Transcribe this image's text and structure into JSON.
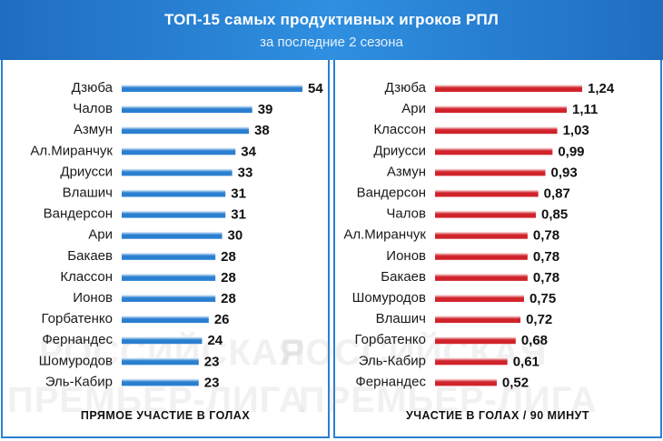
{
  "title": "ТОП-15 самых продуктивных игроков РПЛ",
  "subtitle": "за последние 2 сезона",
  "watermark": [
    "РОССИЙСКАЯ",
    "ПРЕМЬЕР-ЛИГА"
  ],
  "colors": {
    "header": "#2a7fd0",
    "left_bar": "#2a7fd0",
    "right_bar": "#d0232b",
    "border": "#2a7fd0"
  },
  "chart_data": [
    {
      "type": "bar",
      "orientation": "horizontal",
      "caption": "ПРЯМОЕ УЧАСТИЕ В ГОЛАХ",
      "categories": [
        "Дзюба",
        "Чалов",
        "Азмун",
        "Ал.Миранчук",
        "Дриусси",
        "Влашич",
        "Вандерсон",
        "Ари",
        "Бакаев",
        "Классон",
        "Ионов",
        "Горбатенко",
        "Фернандес",
        "Шомуродов",
        "Эль-Кабир"
      ],
      "values": [
        54,
        39,
        38,
        34,
        33,
        31,
        31,
        30,
        28,
        28,
        28,
        26,
        24,
        23,
        23
      ],
      "value_labels": [
        "54",
        "39",
        "38",
        "34",
        "33",
        "31",
        "31",
        "30",
        "28",
        "28",
        "28",
        "26",
        "24",
        "23",
        "23"
      ],
      "xlim": [
        0,
        54
      ]
    },
    {
      "type": "bar",
      "orientation": "horizontal",
      "caption": "УЧАСТИЕ В ГОЛАХ / 90 МИНУТ",
      "categories": [
        "Дзюба",
        "Ари",
        "Классон",
        "Дриусси",
        "Азмун",
        "Вандерсон",
        "Чалов",
        "Ал.Миранчук",
        "Ионов",
        "Бакаев",
        "Шомуродов",
        "Влашич",
        "Горбатенко",
        "Эль-Кабир",
        "Фернандес"
      ],
      "values": [
        1.24,
        1.11,
        1.03,
        0.99,
        0.93,
        0.87,
        0.85,
        0.78,
        0.78,
        0.78,
        0.75,
        0.72,
        0.68,
        0.61,
        0.52
      ],
      "value_labels": [
        "1,24",
        "1,11",
        "1,03",
        "0,99",
        "0,93",
        "0,87",
        "0,85",
        "0,78",
        "0,78",
        "0,78",
        "0,75",
        "0,72",
        "0,68",
        "0,61",
        "0,52"
      ],
      "xlim": [
        0,
        1.24
      ]
    }
  ]
}
